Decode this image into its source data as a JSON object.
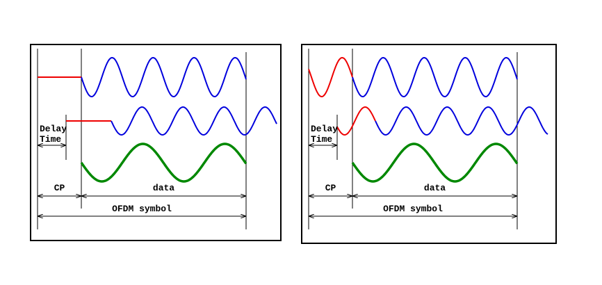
{
  "panels": [
    {
      "delay": [
        "Delay",
        "Time"
      ],
      "cp": "CP",
      "data": "data",
      "symbol": "OFDM symbol"
    },
    {
      "delay": [
        "Delay",
        "Time"
      ],
      "cp": "CP",
      "data": "data",
      "symbol": "OFDM symbol"
    }
  ]
}
